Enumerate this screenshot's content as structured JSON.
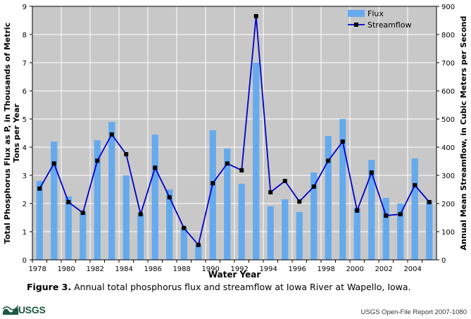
{
  "chart_data": {
    "type": "bar+line",
    "categories": [
      "1978",
      "1979",
      "1980",
      "1981",
      "1982",
      "1983",
      "1984",
      "1985",
      "1986",
      "1987",
      "1988",
      "1989",
      "1990",
      "1991",
      "1992",
      "1993",
      "1994",
      "1995",
      "1996",
      "1997",
      "1998",
      "1999",
      "2000",
      "2001",
      "2002",
      "2003",
      "2004",
      "2005"
    ],
    "x_tick_labels": [
      "1978",
      "1980",
      "1982",
      "1984",
      "1986",
      "1988",
      "1990",
      "1992",
      "1994",
      "1996",
      "1998",
      "2000",
      "2002",
      "2004"
    ],
    "series": [
      {
        "name": "Flux",
        "type": "bar",
        "axis": "left",
        "color": "#66aaee",
        "values": [
          2.8,
          4.2,
          2.25,
          1.7,
          4.25,
          4.9,
          3.0,
          1.65,
          4.45,
          2.5,
          1.15,
          0.55,
          4.6,
          3.95,
          2.7,
          7.0,
          1.9,
          2.15,
          1.7,
          3.1,
          4.4,
          5.0,
          1.85,
          3.55,
          2.2,
          2.0,
          3.6,
          2.1
        ]
      },
      {
        "name": "Streamflow",
        "type": "line",
        "axis": "right",
        "color": "#0000cc",
        "values": [
          253,
          342,
          205,
          167,
          352,
          445,
          375,
          162,
          327,
          222,
          113,
          53,
          272,
          342,
          318,
          865,
          240,
          280,
          207,
          260,
          352,
          420,
          175,
          310,
          157,
          162,
          265,
          205
        ]
      }
    ],
    "y_left": {
      "label": "Total Phosphorus Flux as P, in Thousands of Metric Tons per Year",
      "min": 0,
      "max": 9,
      "ticks": [
        "0",
        "1",
        "2",
        "3",
        "4",
        "5",
        "6",
        "7",
        "8",
        "9"
      ]
    },
    "y_right": {
      "label": "Annual Mean Streamflow, in Cubic Meters per Second",
      "min": 0,
      "max": 900,
      "ticks": [
        "0",
        "100",
        "200",
        "300",
        "400",
        "500",
        "600",
        "700",
        "800",
        "900"
      ]
    },
    "xlabel": "Water Year",
    "grid": true,
    "legend_position": "top-right",
    "plot_background": "#c8c8c8"
  },
  "caption": {
    "label": "Figure 3.",
    "text": " Annual total phosphorus flux and streamflow at Iowa River at Wapello, Iowa."
  },
  "logo_text": "USGS",
  "report_text": "USGS Open-File Report 2007-1080"
}
